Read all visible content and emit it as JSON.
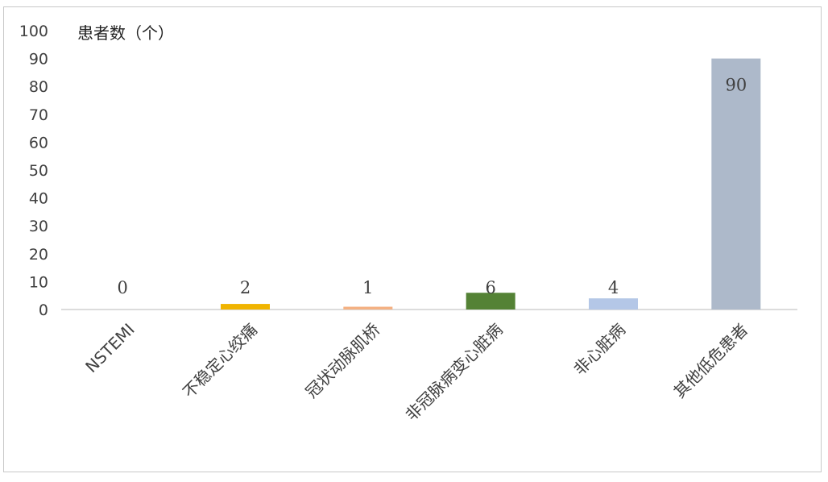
{
  "chart_data": {
    "type": "bar",
    "ylabel": "患者数（个）",
    "categories": [
      "NSTEMI",
      "不稳定心绞痛",
      "冠状动脉肌桥",
      "非冠脉病变心脏病",
      "非心脏病",
      "其他低危患者"
    ],
    "values": [
      0,
      2,
      1,
      6,
      4,
      90
    ],
    "colors": [
      "#4472c4",
      "#f0b400",
      "#f4b183",
      "#548235",
      "#b4c7e7",
      "#adb9ca"
    ],
    "ylim": [
      0,
      100
    ],
    "yticks": [
      0,
      10,
      20,
      30,
      40,
      50,
      60,
      70,
      80,
      90,
      100
    ],
    "grid": false,
    "data_labels": true,
    "legend": "none"
  }
}
